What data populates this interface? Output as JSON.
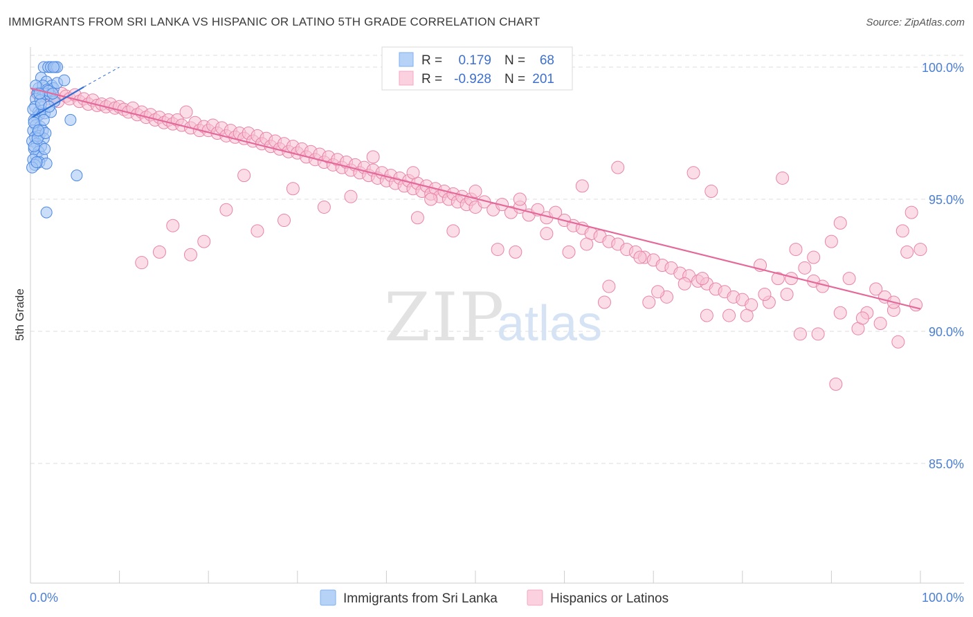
{
  "header": {
    "title": "IMMIGRANTS FROM SRI LANKA VS HISPANIC OR LATINO 5TH GRADE CORRELATION CHART",
    "source": "Source: ZipAtlas.com"
  },
  "watermark": {
    "zip": "ZIP",
    "atlas": "atlas"
  },
  "legend_box": {
    "rows": [
      {
        "r_label": "R =",
        "r_value": "0.179",
        "n_label": "N =",
        "n_value": "68",
        "color": "#7fb0f0"
      },
      {
        "r_label": "R =",
        "r_value": "-0.928",
        "n_label": "N =",
        "n_value": "201",
        "color": "#f5a9c2"
      }
    ]
  },
  "colors": {
    "blue_fill": "#a9c8f5",
    "blue_stroke": "#4a86e0",
    "blue_line": "#2f6fd6",
    "pink_fill": "#f7c1d3",
    "pink_stroke": "#e983a6",
    "pink_line": "#e4699a",
    "grid": "#dddddd",
    "tick_label": "#4a7fd4"
  },
  "chart_data": {
    "type": "scatter",
    "title": "IMMIGRANTS FROM SRI LANKA VS HISPANIC OR LATINO 5TH GRADE CORRELATION CHART",
    "xlabel": "",
    "ylabel": "5th Grade",
    "xlim": [
      0,
      100
    ],
    "ylim": [
      80.0,
      100.4
    ],
    "x_tick_labels": [
      "0.0%",
      "100.0%"
    ],
    "y_ticks": [
      85.0,
      90.0,
      95.0,
      100.0
    ],
    "y_tick_labels": [
      "85.0%",
      "90.0%",
      "95.0%",
      "100.0%"
    ],
    "grid": true,
    "legend_position": "bottom",
    "series": [
      {
        "name": "Immigrants from Sri Lanka",
        "r": 0.179,
        "n": 68,
        "trend": {
          "x": [
            0.2,
            6.0
          ],
          "y": [
            98.1,
            99.25
          ],
          "dashed_to": [
            10.0,
            100.0
          ]
        },
        "points": [
          [
            1.5,
            100.0
          ],
          [
            2.0,
            100.0
          ],
          [
            2.3,
            100.0
          ],
          [
            2.8,
            100.0
          ],
          [
            3.0,
            100.0
          ],
          [
            2.6,
            100.0
          ],
          [
            1.2,
            99.6
          ],
          [
            1.8,
            99.45
          ],
          [
            2.4,
            99.3
          ],
          [
            0.9,
            99.2
          ],
          [
            1.4,
            99.3
          ],
          [
            1.9,
            99.15
          ],
          [
            2.6,
            99.2
          ],
          [
            3.0,
            99.4
          ],
          [
            0.8,
            99.0
          ],
          [
            1.3,
            98.9
          ],
          [
            1.7,
            99.0
          ],
          [
            2.2,
            98.95
          ],
          [
            0.6,
            98.8
          ],
          [
            1.1,
            98.75
          ],
          [
            2.7,
            98.7
          ],
          [
            0.5,
            98.5
          ],
          [
            0.9,
            98.3
          ],
          [
            1.3,
            98.35
          ],
          [
            0.7,
            98.1
          ],
          [
            1.0,
            98.2
          ],
          [
            1.6,
            98.25
          ],
          [
            2.3,
            98.3
          ],
          [
            0.4,
            98.0
          ],
          [
            0.6,
            97.8
          ],
          [
            1.1,
            97.75
          ],
          [
            0.3,
            97.6
          ],
          [
            0.8,
            97.5
          ],
          [
            1.4,
            97.6
          ],
          [
            0.5,
            97.35
          ],
          [
            1.0,
            97.4
          ],
          [
            1.5,
            97.3
          ],
          [
            0.2,
            97.2
          ],
          [
            0.7,
            97.1
          ],
          [
            1.2,
            97.0
          ],
          [
            0.4,
            96.9
          ],
          [
            0.9,
            96.8
          ],
          [
            0.6,
            96.65
          ],
          [
            1.3,
            96.6
          ],
          [
            0.3,
            96.5
          ],
          [
            1.0,
            96.4
          ],
          [
            1.8,
            96.35
          ],
          [
            0.5,
            96.3
          ],
          [
            4.5,
            98.0
          ],
          [
            5.2,
            95.9
          ],
          [
            1.8,
            94.5
          ],
          [
            3.8,
            99.5
          ],
          [
            0.2,
            96.2
          ],
          [
            0.4,
            97.0
          ],
          [
            1.6,
            96.9
          ],
          [
            0.8,
            97.3
          ],
          [
            0.3,
            98.4
          ],
          [
            1.2,
            98.6
          ],
          [
            2.0,
            99.1
          ],
          [
            1.5,
            98.0
          ],
          [
            0.6,
            99.3
          ],
          [
            2.1,
            98.5
          ],
          [
            0.4,
            97.9
          ],
          [
            1.0,
            99.0
          ],
          [
            0.7,
            96.4
          ],
          [
            1.7,
            97.5
          ],
          [
            2.5,
            99.0
          ],
          [
            0.9,
            97.6
          ]
        ]
      },
      {
        "name": "Hispanics or Latinos",
        "r": -0.928,
        "n": 201,
        "trend": {
          "x": [
            0.0,
            100.0
          ],
          "y": [
            99.2,
            90.85
          ]
        },
        "points": [
          [
            0.8,
            99.0
          ],
          [
            1.5,
            98.9
          ],
          [
            2.0,
            98.8
          ],
          [
            2.6,
            98.9
          ],
          [
            3.1,
            98.7
          ],
          [
            3.5,
            99.0
          ],
          [
            4.0,
            98.9
          ],
          [
            4.4,
            98.8
          ],
          [
            5.0,
            98.95
          ],
          [
            5.5,
            98.7
          ],
          [
            6.0,
            98.8
          ],
          [
            6.5,
            98.6
          ],
          [
            7.0,
            98.75
          ],
          [
            7.5,
            98.55
          ],
          [
            8.0,
            98.6
          ],
          [
            8.5,
            98.5
          ],
          [
            9.0,
            98.6
          ],
          [
            9.5,
            98.45
          ],
          [
            10.0,
            98.5
          ],
          [
            10.5,
            98.4
          ],
          [
            11.0,
            98.3
          ],
          [
            11.5,
            98.45
          ],
          [
            12.0,
            98.2
          ],
          [
            12.5,
            98.3
          ],
          [
            13.0,
            98.1
          ],
          [
            13.5,
            98.2
          ],
          [
            14.0,
            98.0
          ],
          [
            14.5,
            98.1
          ],
          [
            15.0,
            97.9
          ],
          [
            15.5,
            98.0
          ],
          [
            16.0,
            97.85
          ],
          [
            16.5,
            98.0
          ],
          [
            17.0,
            97.8
          ],
          [
            17.5,
            98.3
          ],
          [
            18.0,
            97.7
          ],
          [
            18.5,
            97.9
          ],
          [
            19.0,
            97.6
          ],
          [
            19.5,
            97.75
          ],
          [
            20.0,
            97.6
          ],
          [
            20.5,
            97.8
          ],
          [
            21.0,
            97.5
          ],
          [
            21.5,
            97.7
          ],
          [
            22.0,
            97.4
          ],
          [
            22.5,
            97.6
          ],
          [
            23.0,
            97.35
          ],
          [
            23.5,
            97.5
          ],
          [
            24.0,
            97.3
          ],
          [
            24.5,
            97.5
          ],
          [
            25.0,
            97.2
          ],
          [
            25.5,
            97.4
          ],
          [
            26.0,
            97.1
          ],
          [
            26.5,
            97.3
          ],
          [
            27.0,
            97.0
          ],
          [
            27.5,
            97.2
          ],
          [
            28.0,
            96.9
          ],
          [
            28.5,
            97.1
          ],
          [
            29.0,
            96.8
          ],
          [
            29.5,
            97.0
          ],
          [
            30.0,
            96.75
          ],
          [
            30.5,
            96.9
          ],
          [
            31.0,
            96.6
          ],
          [
            31.5,
            96.8
          ],
          [
            32.0,
            96.5
          ],
          [
            32.5,
            96.7
          ],
          [
            33.0,
            96.4
          ],
          [
            33.5,
            96.6
          ],
          [
            34.0,
            96.3
          ],
          [
            34.5,
            96.5
          ],
          [
            35.0,
            96.2
          ],
          [
            35.5,
            96.4
          ],
          [
            36.0,
            96.1
          ],
          [
            36.5,
            96.3
          ],
          [
            37.0,
            96.0
          ],
          [
            37.5,
            96.2
          ],
          [
            38.0,
            95.9
          ],
          [
            38.5,
            96.1
          ],
          [
            39.0,
            95.8
          ],
          [
            39.5,
            96.0
          ],
          [
            40.0,
            95.7
          ],
          [
            40.5,
            95.9
          ],
          [
            41.0,
            95.6
          ],
          [
            41.5,
            95.8
          ],
          [
            42.0,
            95.5
          ],
          [
            42.5,
            95.7
          ],
          [
            43.0,
            95.4
          ],
          [
            43.5,
            95.6
          ],
          [
            44.0,
            95.3
          ],
          [
            44.5,
            95.5
          ],
          [
            45.0,
            95.2
          ],
          [
            45.5,
            95.4
          ],
          [
            46.0,
            95.1
          ],
          [
            46.5,
            95.3
          ],
          [
            47.0,
            95.0
          ],
          [
            47.5,
            95.2
          ],
          [
            48.0,
            94.9
          ],
          [
            48.5,
            95.1
          ],
          [
            49.0,
            94.8
          ],
          [
            49.5,
            95.0
          ],
          [
            50.0,
            94.7
          ],
          [
            51.0,
            94.9
          ],
          [
            52.0,
            94.6
          ],
          [
            53.0,
            94.8
          ],
          [
            54.0,
            94.5
          ],
          [
            55.0,
            94.7
          ],
          [
            56.0,
            94.4
          ],
          [
            57.0,
            94.6
          ],
          [
            58.0,
            94.3
          ],
          [
            59.0,
            94.5
          ],
          [
            60.0,
            94.2
          ],
          [
            61.0,
            94.0
          ],
          [
            62.0,
            93.9
          ],
          [
            63.0,
            93.7
          ],
          [
            64.0,
            93.6
          ],
          [
            65.0,
            93.4
          ],
          [
            66.0,
            93.3
          ],
          [
            67.0,
            93.1
          ],
          [
            68.0,
            93.0
          ],
          [
            69.0,
            92.8
          ],
          [
            70.0,
            92.7
          ],
          [
            71.0,
            92.5
          ],
          [
            72.0,
            92.4
          ],
          [
            73.0,
            92.2
          ],
          [
            74.0,
            92.1
          ],
          [
            75.0,
            91.9
          ],
          [
            76.0,
            91.8
          ],
          [
            77.0,
            91.6
          ],
          [
            78.0,
            91.5
          ],
          [
            79.0,
            91.3
          ],
          [
            80.0,
            91.2
          ],
          [
            81.0,
            91.0
          ],
          [
            82.0,
            92.5
          ],
          [
            83.0,
            91.1
          ],
          [
            84.0,
            92.0
          ],
          [
            85.0,
            91.4
          ],
          [
            86.0,
            93.1
          ],
          [
            87.0,
            92.4
          ],
          [
            88.0,
            91.9
          ],
          [
            89.0,
            91.7
          ],
          [
            90.0,
            93.4
          ],
          [
            91.0,
            94.1
          ],
          [
            92.0,
            92.0
          ],
          [
            93.0,
            90.1
          ],
          [
            94.0,
            90.7
          ],
          [
            95.0,
            91.6
          ],
          [
            96.0,
            91.3
          ],
          [
            97.0,
            90.8
          ],
          [
            98.0,
            93.8
          ],
          [
            99.0,
            94.5
          ],
          [
            99.5,
            91.0
          ],
          [
            97.5,
            89.6
          ],
          [
            90.5,
            88.0
          ],
          [
            88.5,
            89.9
          ],
          [
            86.5,
            89.9
          ],
          [
            84.5,
            95.8
          ],
          [
            76.5,
            95.3
          ],
          [
            74.5,
            96.0
          ],
          [
            66.0,
            96.2
          ],
          [
            62.0,
            95.5
          ],
          [
            55.0,
            95.0
          ],
          [
            50.0,
            95.3
          ],
          [
            43.0,
            96.0
          ],
          [
            38.5,
            96.6
          ],
          [
            36.0,
            95.1
          ],
          [
            33.0,
            94.7
          ],
          [
            29.5,
            95.4
          ],
          [
            28.5,
            94.2
          ],
          [
            25.5,
            93.8
          ],
          [
            24.0,
            95.9
          ],
          [
            22.0,
            94.6
          ],
          [
            19.5,
            93.4
          ],
          [
            18.0,
            92.9
          ],
          [
            16.0,
            94.0
          ],
          [
            14.5,
            93.0
          ],
          [
            12.5,
            92.6
          ],
          [
            65.0,
            91.7
          ],
          [
            69.5,
            91.1
          ],
          [
            71.5,
            91.3
          ],
          [
            73.5,
            91.8
          ],
          [
            76.0,
            90.6
          ],
          [
            80.5,
            90.6
          ],
          [
            82.5,
            91.4
          ],
          [
            85.5,
            92.0
          ],
          [
            88.0,
            92.8
          ],
          [
            91.0,
            90.7
          ],
          [
            93.5,
            90.5
          ],
          [
            95.5,
            90.3
          ],
          [
            97.0,
            91.1
          ],
          [
            98.5,
            93.0
          ],
          [
            100.0,
            93.1
          ],
          [
            78.5,
            90.6
          ],
          [
            62.5,
            93.3
          ],
          [
            58.0,
            93.7
          ],
          [
            54.5,
            93.0
          ],
          [
            52.5,
            93.1
          ],
          [
            47.5,
            93.8
          ],
          [
            43.5,
            94.3
          ],
          [
            45.0,
            95.0
          ],
          [
            60.5,
            93.0
          ],
          [
            64.5,
            91.1
          ],
          [
            68.5,
            92.8
          ],
          [
            70.5,
            91.5
          ],
          [
            75.5,
            92.0
          ]
        ]
      }
    ]
  },
  "bottom_legend": {
    "items": [
      {
        "label": "Immigrants from Sri Lanka"
      },
      {
        "label": "Hispanics or Latinos"
      }
    ]
  }
}
